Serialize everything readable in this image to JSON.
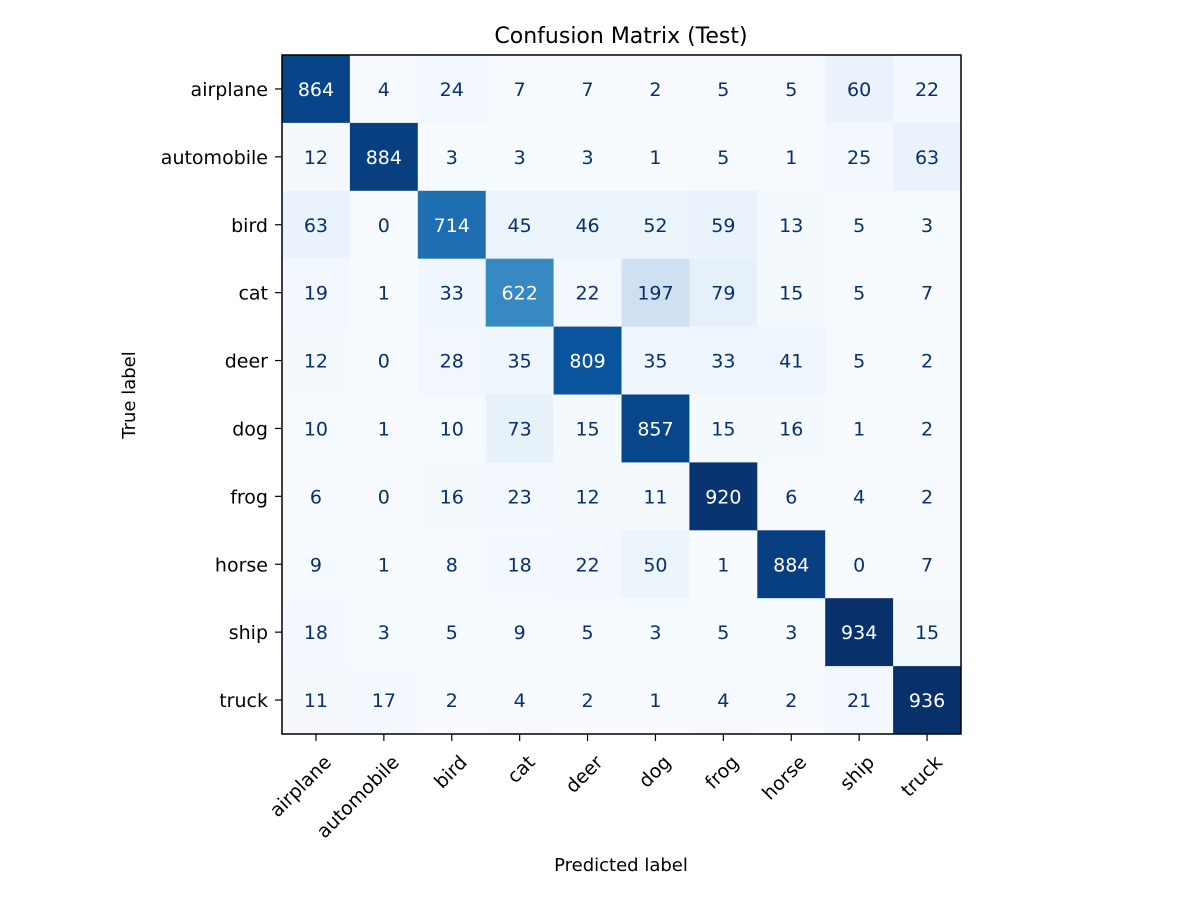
{
  "chart_data": {
    "type": "heatmap",
    "title": "Confusion Matrix (Test)",
    "xlabel": "Predicted label",
    "ylabel": "True label",
    "x_categories": [
      "airplane",
      "automobile",
      "bird",
      "cat",
      "deer",
      "dog",
      "frog",
      "horse",
      "ship",
      "truck"
    ],
    "y_categories": [
      "airplane",
      "automobile",
      "bird",
      "cat",
      "deer",
      "dog",
      "frog",
      "horse",
      "ship",
      "truck"
    ],
    "values": [
      [
        864,
        4,
        24,
        7,
        7,
        2,
        5,
        5,
        60,
        22
      ],
      [
        12,
        884,
        3,
        3,
        3,
        1,
        5,
        1,
        25,
        63
      ],
      [
        63,
        0,
        714,
        45,
        46,
        52,
        59,
        13,
        5,
        3
      ],
      [
        19,
        1,
        33,
        622,
        22,
        197,
        79,
        15,
        5,
        7
      ],
      [
        12,
        0,
        28,
        35,
        809,
        35,
        33,
        41,
        5,
        2
      ],
      [
        10,
        1,
        10,
        73,
        15,
        857,
        15,
        16,
        1,
        2
      ],
      [
        6,
        0,
        16,
        23,
        12,
        11,
        920,
        6,
        4,
        2
      ],
      [
        9,
        1,
        8,
        18,
        22,
        50,
        1,
        884,
        0,
        7
      ],
      [
        18,
        3,
        5,
        9,
        5,
        3,
        5,
        3,
        934,
        15
      ],
      [
        11,
        17,
        2,
        4,
        2,
        1,
        4,
        2,
        21,
        936
      ]
    ],
    "colormap": "Blues",
    "color_low": "#f7fbff",
    "color_high": "#08306b",
    "text_dark": "#08306b",
    "text_light": "#ffffff",
    "grid": false,
    "legend": "none"
  }
}
